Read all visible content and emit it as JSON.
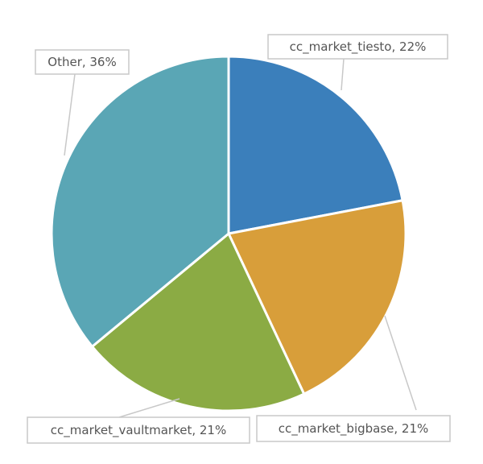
{
  "chart_data": {
    "type": "pie",
    "slices": [
      {
        "name": "cc_market_tiesto",
        "value": 22,
        "color": "#3b7fbb",
        "label": "cc_market_tiesto, 22%"
      },
      {
        "name": "cc_market_bigbase",
        "value": 21,
        "color": "#d89e3a",
        "label": "cc_market_bigbase, 21%"
      },
      {
        "name": "cc_market_vaultmarket",
        "value": 21,
        "color": "#8bab44",
        "label": "cc_market_vaultmarket, 21%"
      },
      {
        "name": "Other",
        "value": 36,
        "color": "#5aa6b5",
        "label": "Other, 36%"
      }
    ],
    "start_angle": "12 o'clock",
    "direction": "clockwise",
    "legend": "none"
  }
}
